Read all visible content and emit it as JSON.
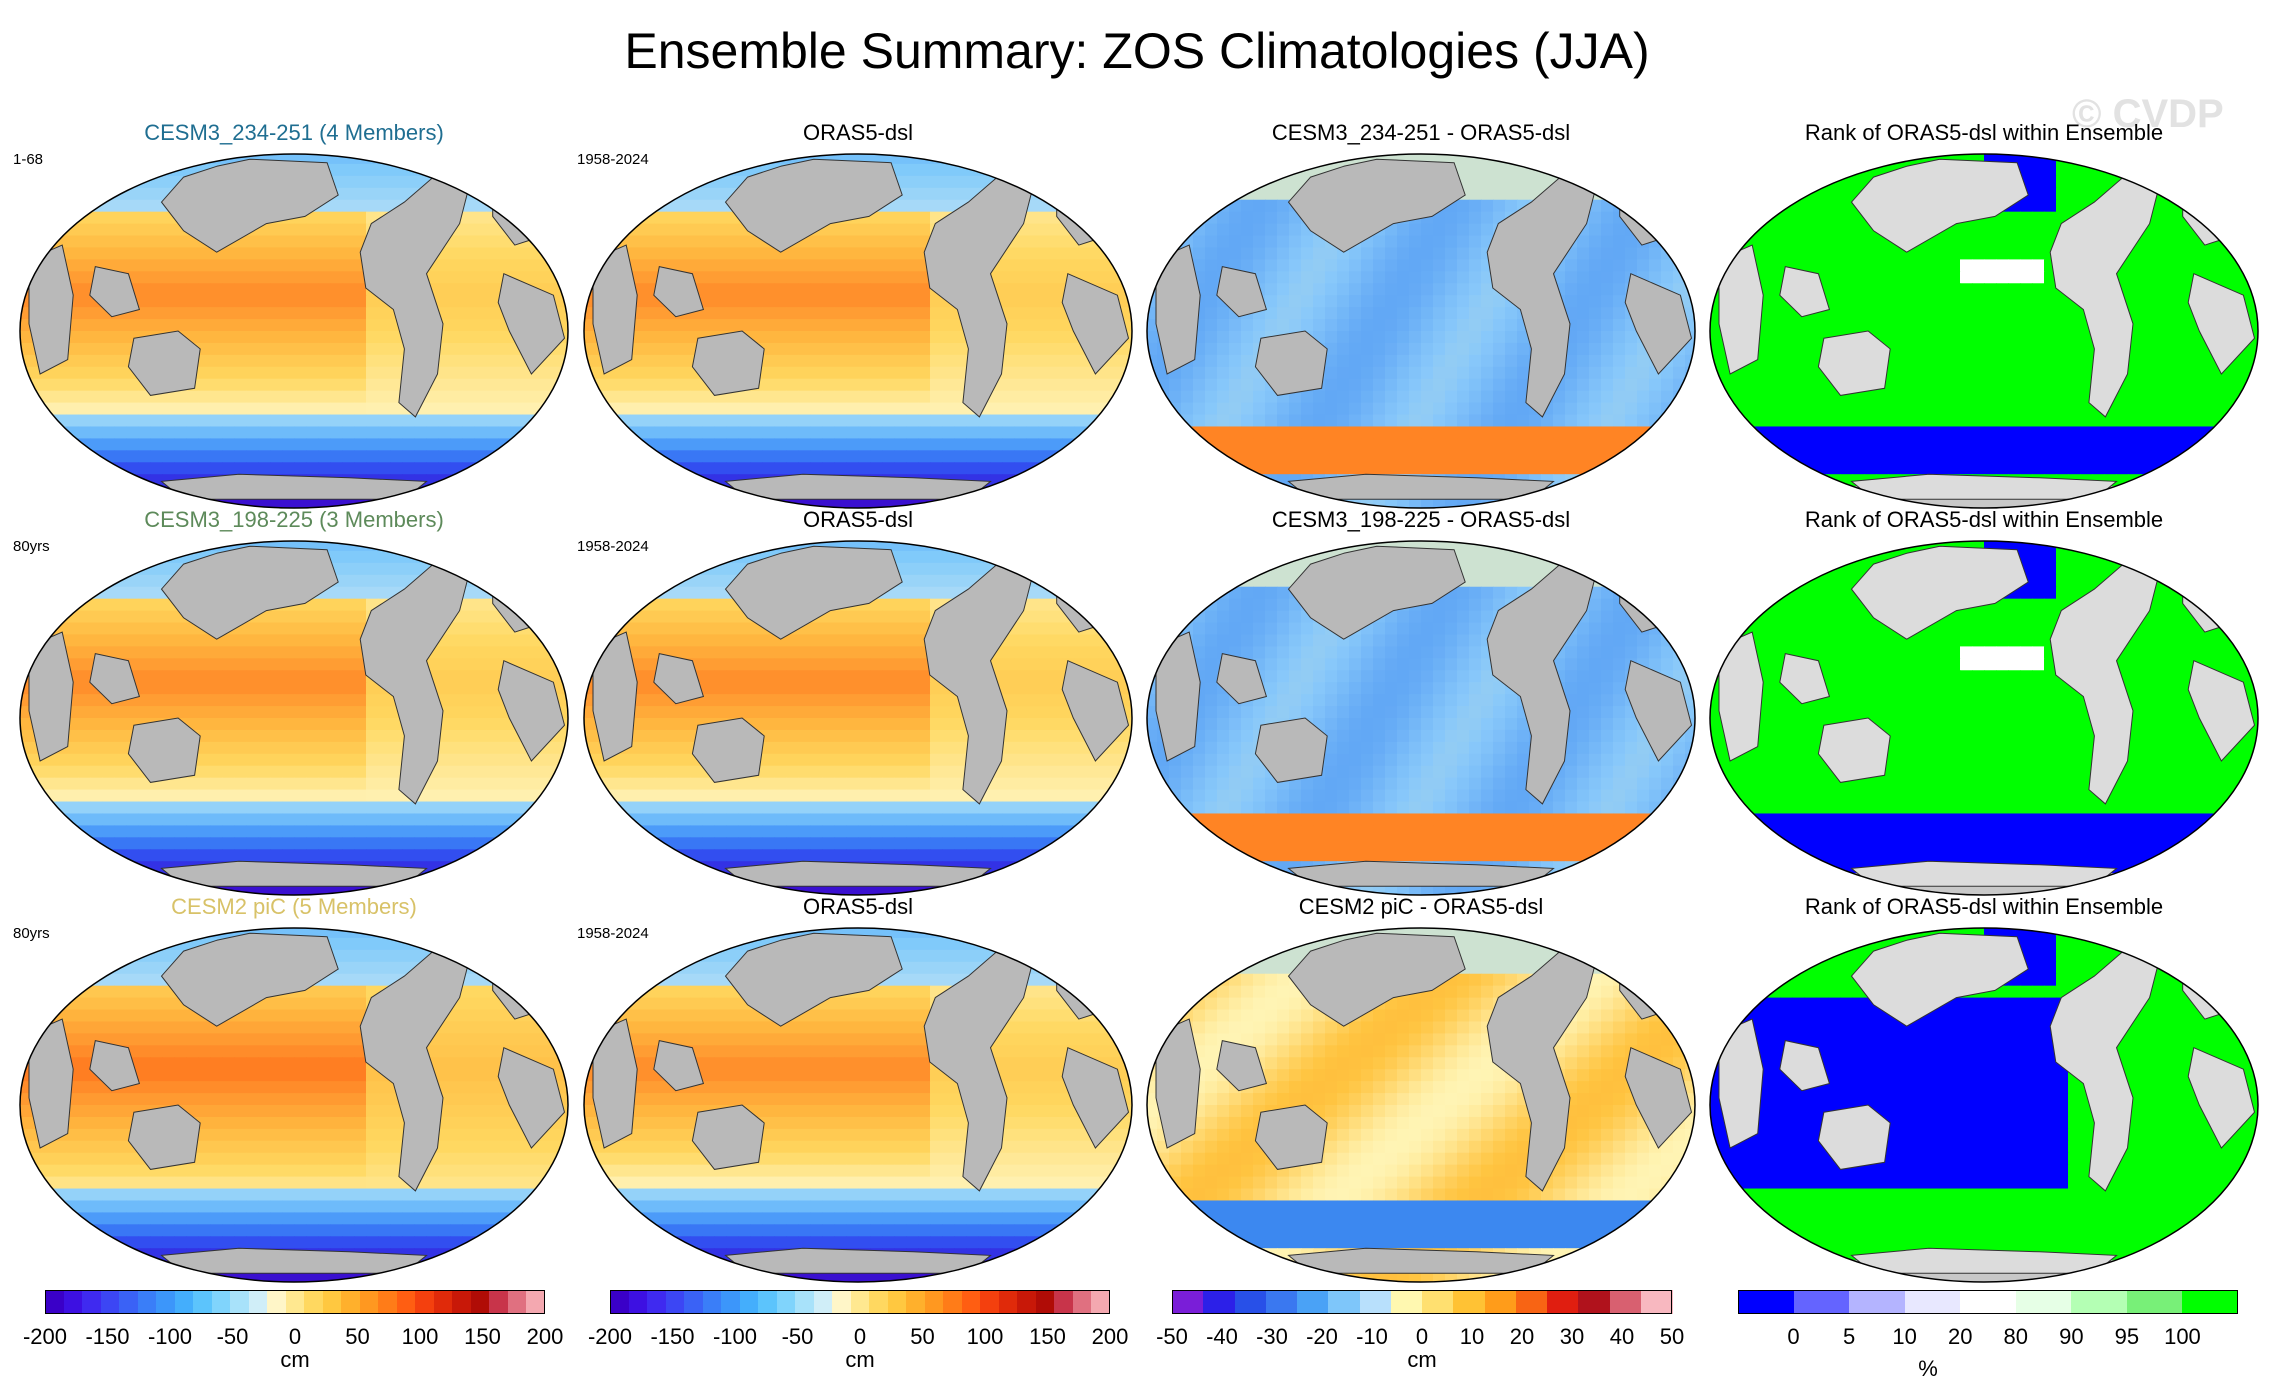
{
  "title": "Ensemble Summary: ZOS Climatologies (JJA)",
  "watermark": "© CVDP",
  "rows": [
    {
      "model": {
        "title": "CESM3_234-251 (4 Members)",
        "title_color": "#1f6e91",
        "period": "1-68"
      },
      "obs": {
        "title": "ORAS5-dsl",
        "period": "1958-2024"
      },
      "diff": {
        "title": "CESM3_234-251 - ORAS5-dsl"
      },
      "rank": {
        "title": "Rank of ORAS5-dsl within Ensemble"
      }
    },
    {
      "model": {
        "title": "CESM3_198-225 (3 Members)",
        "title_color": "#5d8a5a",
        "period": "80yrs"
      },
      "obs": {
        "title": "ORAS5-dsl",
        "period": "1958-2024"
      },
      "diff": {
        "title": "CESM3_198-225 - ORAS5-dsl"
      },
      "rank": {
        "title": "Rank of ORAS5-dsl within Ensemble"
      }
    },
    {
      "model": {
        "title": "CESM2 piC (5 Members)",
        "title_color": "#d8c268",
        "period": "80yrs"
      },
      "obs": {
        "title": "ORAS5-dsl",
        "period": "1958-2024"
      },
      "diff": {
        "title": "CESM2 piC - ORAS5-dsl"
      },
      "rank": {
        "title": "Rank of ORAS5-dsl within Ensemble"
      }
    }
  ],
  "colorbars": [
    {
      "unit": "cm",
      "colors": [
        "#3a00c8",
        "#3d10e2",
        "#3f2af0",
        "#3c46f4",
        "#3a62f6",
        "#3a7ef8",
        "#3c96fa",
        "#44aefc",
        "#5cc4fc",
        "#80d4fc",
        "#a8e2fa",
        "#d0eef8",
        "#fff6c8",
        "#ffe890",
        "#ffd860",
        "#ffc840",
        "#ffb02c",
        "#ff9820",
        "#ff7c18",
        "#ff5e12",
        "#f4400e",
        "#e02a0a",
        "#c81808",
        "#b00c06",
        "#c8344a",
        "#e07080",
        "#f4a8b0"
      ],
      "labels": [
        "-200",
        "-150",
        "-100",
        "-50",
        "0",
        "50",
        "100",
        "150",
        "200"
      ]
    },
    {
      "unit": "cm",
      "colors": [
        "#3a00c8",
        "#3d10e2",
        "#3f2af0",
        "#3c46f4",
        "#3a62f6",
        "#3a7ef8",
        "#3c96fa",
        "#44aefc",
        "#5cc4fc",
        "#80d4fc",
        "#a8e2fa",
        "#d0eef8",
        "#fff6c8",
        "#ffe890",
        "#ffd860",
        "#ffc840",
        "#ffb02c",
        "#ff9820",
        "#ff7c18",
        "#ff5e12",
        "#f4400e",
        "#e02a0a",
        "#c81808",
        "#b00c06",
        "#c8344a",
        "#e07080",
        "#f4a8b0"
      ],
      "labels": [
        "-200",
        "-150",
        "-100",
        "-50",
        "0",
        "50",
        "100",
        "150",
        "200"
      ]
    },
    {
      "unit": "cm",
      "colors": [
        "#7a1ed8",
        "#2c20e8",
        "#2850e8",
        "#3a78f0",
        "#4aa2f6",
        "#7ec6fa",
        "#b8e0fc",
        "#fff8b0",
        "#ffe070",
        "#ffc234",
        "#ff9c1a",
        "#f86414",
        "#e01e10",
        "#b0121c",
        "#d86070",
        "#f8b8c0"
      ],
      "labels": [
        "-50",
        "-40",
        "-30",
        "-20",
        "-10",
        "0",
        "10",
        "20",
        "30",
        "40",
        "50"
      ]
    },
    {
      "unit": "%",
      "colors": [
        "#0000ff",
        "#6464ff",
        "#b4b4ff",
        "#e8e8ff",
        "#ffffff",
        "#e6ffe6",
        "#b4ffb4",
        "#78f078",
        "#00ff00"
      ],
      "labels": [
        "0",
        "5",
        "10",
        "20",
        "80",
        "90",
        "95",
        "100"
      ]
    }
  ]
}
